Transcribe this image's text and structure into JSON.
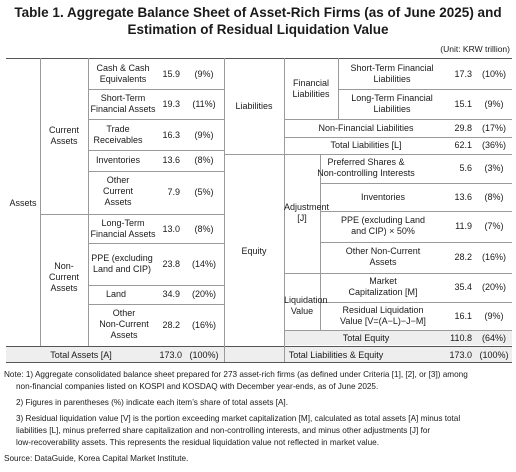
{
  "title_line1": "Table 1. Aggregate Balance Sheet of Asset-Rich Firms (as of June 2025) and",
  "title_line2": "Estimation of Residual Liquidation Value",
  "unit": "(Unit: KRW trillion)",
  "left": {
    "assets": "Assets",
    "current_assets": [
      "Current",
      "Assets"
    ],
    "non_current_assets": [
      "Non-",
      "Current",
      "Assets"
    ],
    "rows": [
      {
        "item": [
          "Cash & Cash",
          "Equivalents"
        ],
        "value": "15.9",
        "share": "(9%)"
      },
      {
        "item": [
          "Short-Term",
          "Financial Assets"
        ],
        "value": "19.3",
        "share": "(11%)"
      },
      {
        "item": [
          "Trade",
          "Receivables"
        ],
        "value": "16.3",
        "share": "(9%)"
      },
      {
        "item": [
          "Inventories"
        ],
        "value": "13.6",
        "share": "(8%)"
      },
      {
        "item": [
          "Other",
          "Current",
          "Assets"
        ],
        "value": "7.9",
        "share": "(5%)"
      },
      {
        "item": [
          "Long-Term",
          "Financial Assets"
        ],
        "value": "13.0",
        "share": "(8%)"
      },
      {
        "item": [
          "PPE (excluding",
          "Land and CIP)"
        ],
        "value": "23.8",
        "share": "(14%)"
      },
      {
        "item": [
          "Land"
        ],
        "value": "34.9",
        "share": "(20%)"
      },
      {
        "item": [
          "Other",
          "Non-Current",
          "Assets"
        ],
        "value": "28.2",
        "share": "(16%)"
      }
    ],
    "total_label": "Total Assets [A]",
    "total_value": "173.0",
    "total_share": "(100%)"
  },
  "right": {
    "liabilities": "Liabilities",
    "financial_liabilities": [
      "Financial",
      "Liabilities"
    ],
    "equity": "Equity",
    "adjustment": [
      "Adjustment",
      "[J]"
    ],
    "liquidation_value": [
      "Liquidation",
      "Value"
    ],
    "rows": [
      {
        "item": [
          "Short-Term Financial",
          "Liabilities"
        ],
        "value": "17.3",
        "share": "(10%)"
      },
      {
        "item": [
          "Long-Term Financial",
          "Liabilities"
        ],
        "value": "15.1",
        "share": "(9%)"
      },
      {
        "item": [
          "Non-Financial Liabilities"
        ],
        "value": "29.8",
        "share": "(17%)"
      },
      {
        "item": [
          "Total Liabilities [L]"
        ],
        "value": "62.1",
        "share": "(36%)"
      },
      {
        "item": [
          "Preferred Shares &",
          "Non-controlling Interests"
        ],
        "value": "5.6",
        "share": "(3%)"
      },
      {
        "item": [
          "Inventories"
        ],
        "value": "13.6",
        "share": "(8%)"
      },
      {
        "item": [
          "PPE (excluding Land",
          "and CIP) × 50%"
        ],
        "value": "11.9",
        "share": "(7%)"
      },
      {
        "item": [
          "Other Non-Current",
          "Assets"
        ],
        "value": "28.2",
        "share": "(16%)"
      },
      {
        "item": [
          "Market",
          "Capitalization [M]"
        ],
        "value": "35.4",
        "share": "(20%)"
      },
      {
        "item": [
          "Residual Liquidation",
          "Value [V=(A−L)−J−M]"
        ],
        "value": "16.1",
        "share": "(9%)"
      },
      {
        "item": [
          "Total Equity"
        ],
        "value": "110.8",
        "share": "(64%)"
      }
    ],
    "total_label": "Total Liabilities & Equity",
    "total_value": "173.0",
    "total_share": "(100%)"
  },
  "notes": [
    "Note: 1) Aggregate consolidated balance sheet prepared for 273 asset-rich firms (as defined under Criteria [1], [2], or [3]) among",
    "non-financial companies listed on KOSPI and KOSDAQ with December year-ends, as of June 2025.",
    "2) Figures in parentheses (%) indicate each item’s share of total assets [A].",
    "3) Residual liquidation value [V] is the portion exceeding market capitalization [M], calculated as total assets [A] minus total",
    "liabilities [L], minus preferred share capitalization and non-controlling interests, and minus other adjustments [J] for",
    "low-recoverability assets. This represents the residual liquidation value not reflected in market value."
  ],
  "source": "Source: DataGuide, Korea Capital Market Institute."
}
